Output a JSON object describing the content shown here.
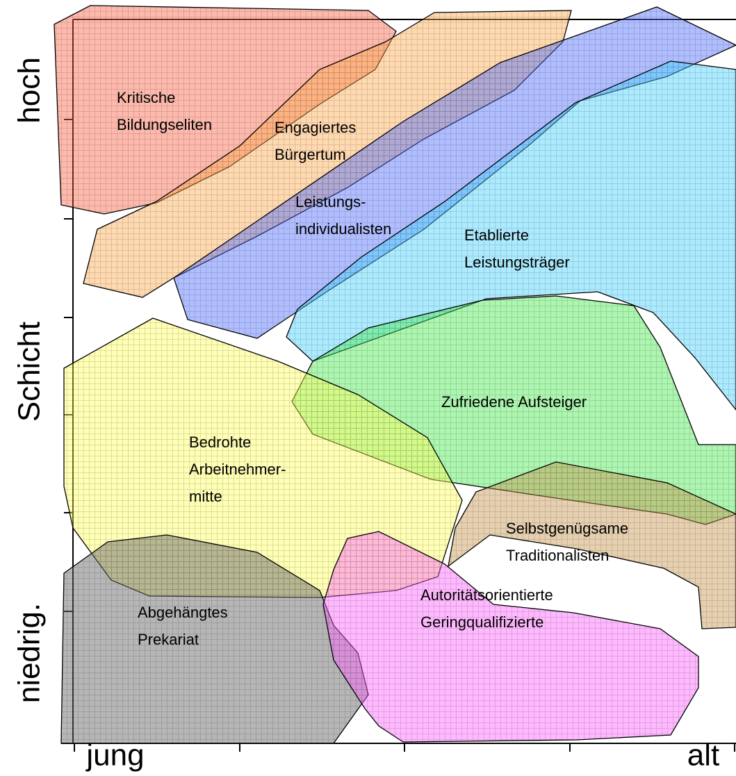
{
  "axes": {
    "y_labels": [
      "hoch",
      "Schicht",
      "niedrig."
    ],
    "x_labels": [
      "jung",
      "alt"
    ]
  },
  "regions": [
    {
      "lines": [
        "Kritische",
        "Bildungseliten"
      ]
    },
    {
      "lines": [
        "Engagiertes",
        "Bürgertum"
      ]
    },
    {
      "lines": [
        "Leistungs-",
        "individualisten"
      ]
    },
    {
      "lines": [
        "Etablierte",
        "Leistungsträger"
      ]
    },
    {
      "lines": [
        "Zufriedene Aufsteiger"
      ]
    },
    {
      "lines": [
        "Bedrohte",
        "Arbeitnehmer-",
        "mitte"
      ]
    },
    {
      "lines": [
        "Selbstgenügsame",
        "Traditionalisten"
      ]
    },
    {
      "lines": [
        "Abgehängtes",
        "Prekariat"
      ]
    },
    {
      "lines": [
        "Autoritätsorientierte",
        "Geringqualifizierte"
      ]
    }
  ]
}
